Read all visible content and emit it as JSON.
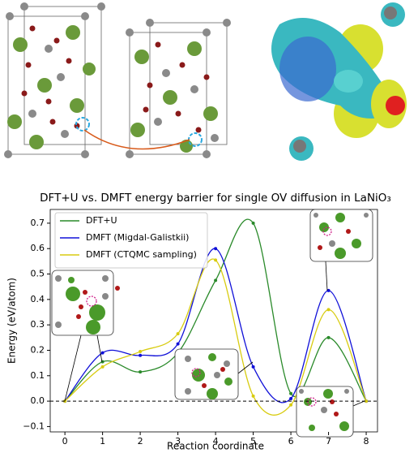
{
  "chart_data": {
    "type": "line",
    "title": "DFT+U vs. DMFT energy barrier for single OV diffusion in LaNiO₃",
    "x_label": "Reaction coordinate",
    "y_label": "Energy (eV/atom)",
    "x": [
      0,
      1,
      2,
      3,
      4,
      5,
      6,
      7,
      8
    ],
    "series": [
      {
        "name": "DFT+U",
        "color": "#2a8a2a",
        "values": [
          0,
          0.155,
          0.115,
          0.19,
          0.475,
          0.7,
          0.03,
          0.25,
          0
        ]
      },
      {
        "name": "DMFT (Migdal-Galistkii)",
        "color": "#1010d8",
        "values": [
          0,
          0.19,
          0.18,
          0.225,
          0.6,
          0.135,
          0.01,
          0.435,
          0
        ]
      },
      {
        "name": "DMFT (CTQMC sampling)",
        "color": "#d8cc10",
        "values": [
          0,
          0.135,
          0.195,
          0.265,
          0.555,
          0.02,
          -0.015,
          0.36,
          0
        ]
      }
    ],
    "xlim": [
      -0.39,
      8.3
    ],
    "ylim": [
      -0.121,
      0.754
    ],
    "xticks": [
      0,
      1,
      2,
      3,
      4,
      5,
      6,
      7,
      8
    ],
    "yticks": [
      {
        "value": -0.1,
        "label": "−0.1"
      },
      {
        "value": 0,
        "label": "0.0"
      },
      {
        "value": 0.1,
        "label": "0.1"
      },
      {
        "value": 0.2,
        "label": "0.2"
      },
      {
        "value": 0.3,
        "label": "0.3"
      },
      {
        "value": 0.4,
        "label": "0.4"
      },
      {
        "value": 0.5,
        "label": "0.5"
      },
      {
        "value": 0.6,
        "label": "0.6"
      },
      {
        "value": 0.7,
        "label": "0.7"
      }
    ],
    "legend": "upper left",
    "grid": false
  }
}
